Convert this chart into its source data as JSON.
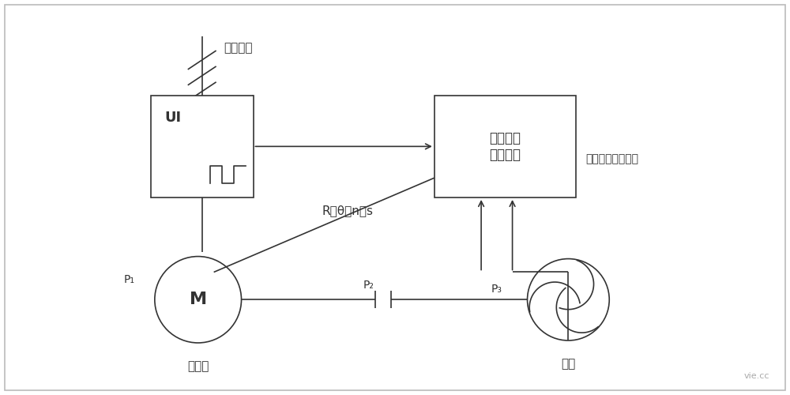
{
  "bg_color": "#ffffff",
  "line_color": "#333333",
  "text_color": "#333333",
  "power_label": "工作电源",
  "p1_label": "P₁",
  "p2_label": "P₂",
  "p3_label": "P₃",
  "motor_label": "电动机",
  "fan_label": "风机",
  "measure_label": "机组效率\n测试装置",
  "signal_label": "R、θ、n、s",
  "pressure_label": "压力、温度、流量",
  "ui_label": "UI",
  "motor_symbol": "M",
  "watermark": "vie.cc"
}
